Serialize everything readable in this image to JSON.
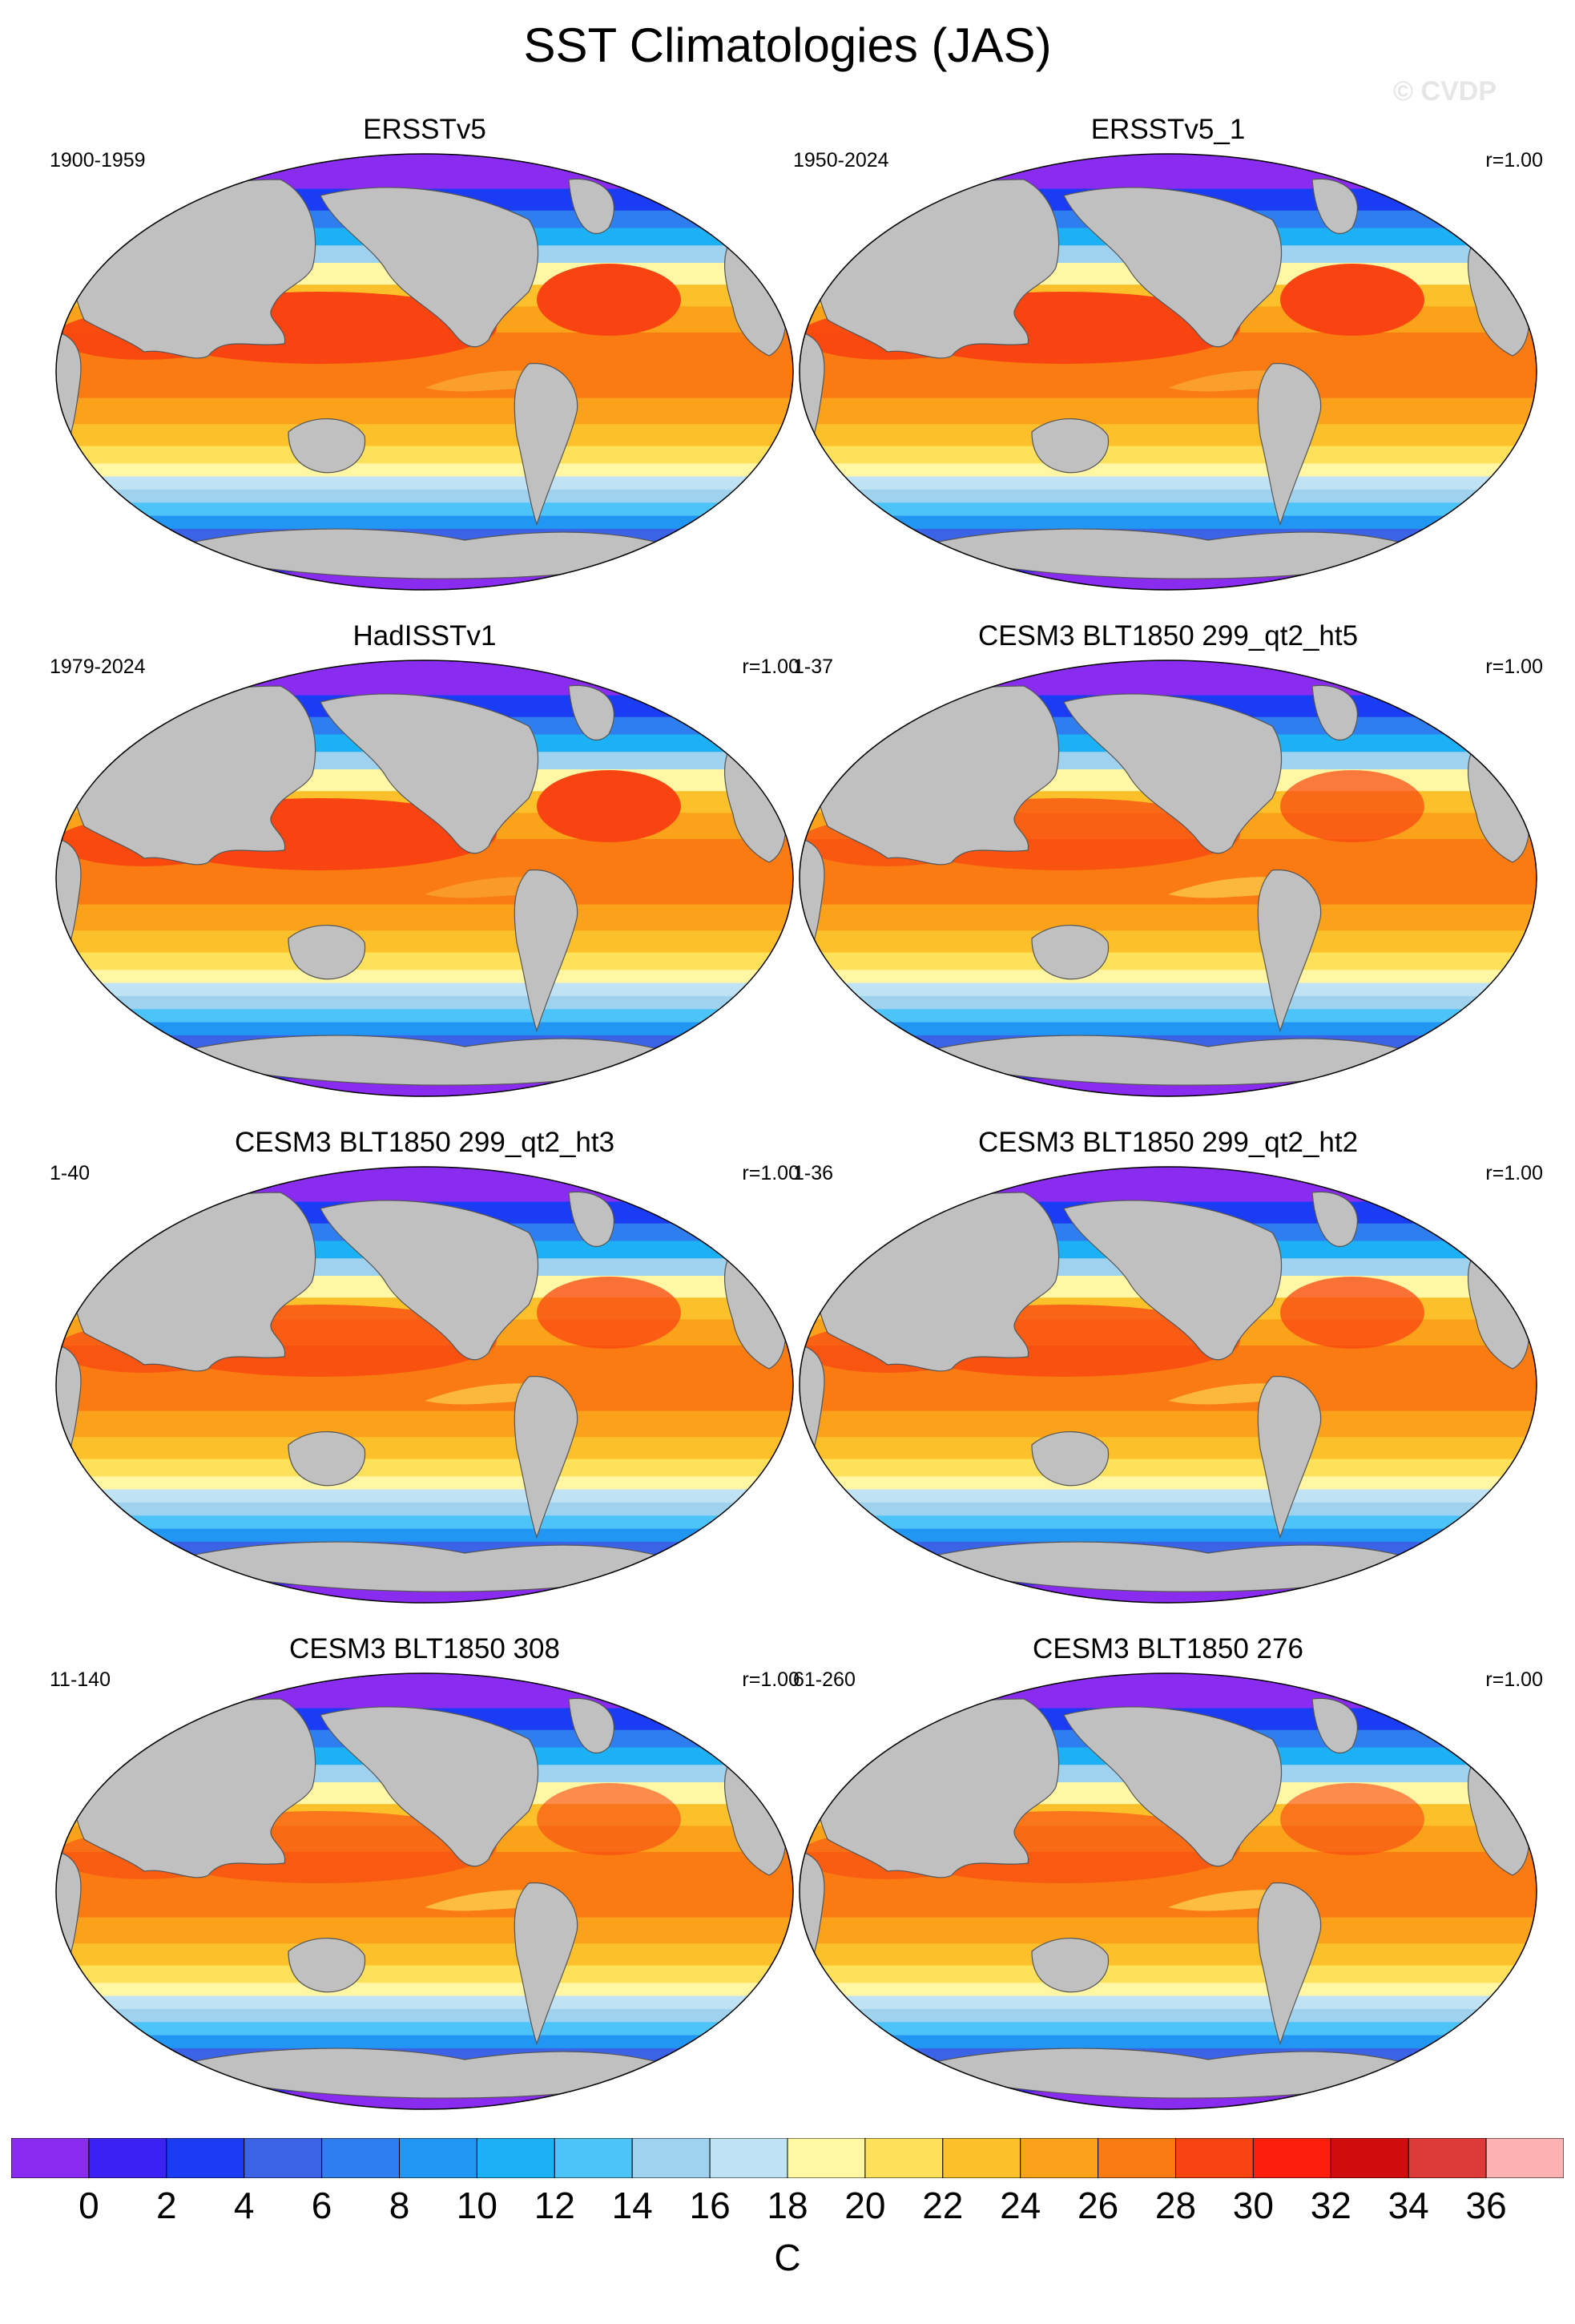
{
  "title": "SST Climatologies (JAS)",
  "watermark": "© CVDP",
  "panels": [
    {
      "title": "ERSSTv5",
      "years": "1900-1959",
      "corr": "",
      "warm_pool": 1.0,
      "cold_tongue": 0.35
    },
    {
      "title": "ERSSTv5_1",
      "years": "1950-2024",
      "corr": "r=1.00",
      "warm_pool": 1.0,
      "cold_tongue": 0.35
    },
    {
      "title": "HadISSTv1",
      "years": "1979-2024",
      "corr": "r=1.00",
      "warm_pool": 1.0,
      "cold_tongue": 0.3
    },
    {
      "title": "CESM3 BLT1850 299_qt2_ht5",
      "years": "1-37",
      "corr": "r=1.00",
      "warm_pool": 0.7,
      "cold_tongue": 0.6
    },
    {
      "title": "CESM3 BLT1850 299_qt2_ht3",
      "years": "1-40",
      "corr": "r=1.00",
      "warm_pool": 0.75,
      "cold_tongue": 0.6
    },
    {
      "title": "CESM3 BLT1850 299_qt2_ht2",
      "years": "1-36",
      "corr": "r=1.00",
      "warm_pool": 0.75,
      "cold_tongue": 0.6
    },
    {
      "title": "CESM3 BLT1850 308",
      "years": "11-140",
      "corr": "r=1.00",
      "warm_pool": 0.6,
      "cold_tongue": 0.65
    },
    {
      "title": "CESM3 BLT1850 276",
      "years": "61-260",
      "corr": "r=1.00",
      "warm_pool": 0.6,
      "cold_tongue": 0.65
    }
  ],
  "colorbar": {
    "unit": "C",
    "labels": [
      "0",
      "2",
      "4",
      "6",
      "8",
      "10",
      "12",
      "14",
      "16",
      "18",
      "20",
      "22",
      "24",
      "26",
      "28",
      "30",
      "32",
      "34",
      "36"
    ],
    "colors": [
      "#8a2cf0",
      "#3a22f2",
      "#1b3cf5",
      "#3b63e6",
      "#2f7ef0",
      "#2196f3",
      "#1cb0f6",
      "#4dc4f8",
      "#9fd2ef",
      "#bfe3f5",
      "#fff7a3",
      "#fde15a",
      "#fcc12a",
      "#fba21b",
      "#f97b12",
      "#f84410",
      "#fe1e0c",
      "#d00c0c",
      "#dd3a3a",
      "#fcb2b2"
    ]
  }
}
